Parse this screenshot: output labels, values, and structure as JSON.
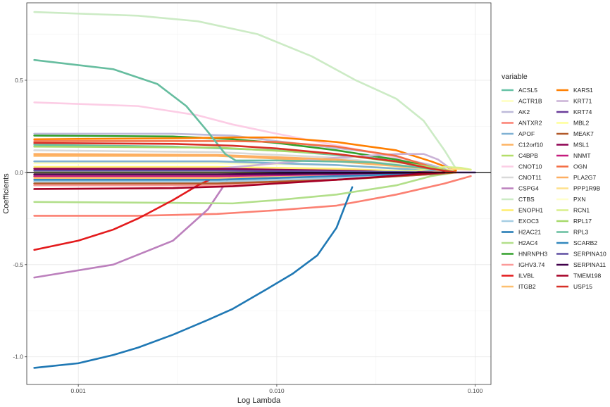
{
  "chart_data": {
    "type": "line",
    "xlabel": "Log Lambda",
    "ylabel": "Coefficients",
    "x_scale": "log",
    "xlim": [
      0.00055,
      0.12
    ],
    "ylim": [
      -1.15,
      0.92
    ],
    "x_ticks": [
      0.001,
      0.01,
      0.1
    ],
    "x_tick_labels": [
      "0.001",
      "0.010",
      "0.100"
    ],
    "y_ticks": [
      -1.0,
      -0.5,
      0.0,
      0.5
    ],
    "y_tick_labels": [
      "-1.0",
      "-0.5",
      "0.0",
      "0.5"
    ],
    "grid": true,
    "zero_line": true,
    "legend": {
      "title": "variable",
      "position": "right",
      "columns": 2
    },
    "series": [
      {
        "name": "ACSL5",
        "color": "#66c2a5",
        "points": [
          [
            0.0006,
            0.15
          ],
          [
            0.003,
            0.14
          ],
          [
            0.01,
            0.12
          ],
          [
            0.03,
            0.08
          ],
          [
            0.06,
            0.03
          ],
          [
            0.08,
            0.0
          ]
        ]
      },
      {
        "name": "ACTR1B",
        "color": "#ffffbf",
        "points": [
          [
            0.0006,
            0.05
          ],
          [
            0.005,
            0.05
          ],
          [
            0.02,
            0.04
          ],
          [
            0.06,
            0.015
          ],
          [
            0.08,
            0.0
          ]
        ]
      },
      {
        "name": "AK2",
        "color": "#bebada",
        "points": [
          [
            0.0006,
            0.21
          ],
          [
            0.003,
            0.21
          ],
          [
            0.006,
            0.2
          ],
          [
            0.01,
            0.17
          ],
          [
            0.03,
            0.11
          ],
          [
            0.06,
            0.04
          ],
          [
            0.08,
            0.0
          ]
        ]
      },
      {
        "name": "ANTXR2",
        "color": "#fb8072",
        "points": [
          [
            0.0006,
            -0.235
          ],
          [
            0.002,
            -0.235
          ],
          [
            0.005,
            -0.225
          ],
          [
            0.01,
            -0.205
          ],
          [
            0.02,
            -0.18
          ],
          [
            0.04,
            -0.12
          ],
          [
            0.07,
            -0.06
          ],
          [
            0.095,
            -0.02
          ]
        ]
      },
      {
        "name": "APOF",
        "color": "#80b1d3",
        "points": [
          [
            0.0006,
            0.06
          ],
          [
            0.005,
            0.06
          ],
          [
            0.02,
            0.04
          ],
          [
            0.06,
            0.01
          ],
          [
            0.08,
            0.0
          ]
        ]
      },
      {
        "name": "C12orf10",
        "color": "#fdb462",
        "points": [
          [
            0.0006,
            0.09
          ],
          [
            0.005,
            0.09
          ],
          [
            0.02,
            0.06
          ],
          [
            0.06,
            0.02
          ],
          [
            0.08,
            0.0
          ]
        ]
      },
      {
        "name": "C4BPB",
        "color": "#b3de69",
        "points": [
          [
            0.0006,
            -0.02
          ],
          [
            0.005,
            -0.02
          ],
          [
            0.02,
            -0.01
          ],
          [
            0.07,
            0.0
          ]
        ]
      },
      {
        "name": "CNOT10",
        "color": "#fccde5",
        "points": [
          [
            0.0006,
            0.38
          ],
          [
            0.002,
            0.36
          ],
          [
            0.004,
            0.31
          ],
          [
            0.006,
            0.26
          ],
          [
            0.01,
            0.21
          ],
          [
            0.03,
            0.11
          ],
          [
            0.06,
            0.03
          ],
          [
            0.08,
            0.0
          ]
        ]
      },
      {
        "name": "CNOT11",
        "color": "#d9d9d9",
        "points": [
          [
            0.0006,
            0.12
          ],
          [
            0.005,
            0.11
          ],
          [
            0.02,
            0.08
          ],
          [
            0.06,
            0.02
          ],
          [
            0.08,
            0.0
          ]
        ]
      },
      {
        "name": "CSPG4",
        "color": "#bc80bd",
        "points": [
          [
            0.0006,
            -0.57
          ],
          [
            0.0015,
            -0.5
          ],
          [
            0.003,
            -0.37
          ],
          [
            0.0045,
            -0.2
          ],
          [
            0.0055,
            -0.06
          ],
          [
            0.006,
            0.0
          ]
        ]
      },
      {
        "name": "CTBS",
        "color": "#ccebc5",
        "points": [
          [
            0.0006,
            0.87
          ],
          [
            0.002,
            0.85
          ],
          [
            0.004,
            0.82
          ],
          [
            0.008,
            0.75
          ],
          [
            0.015,
            0.63
          ],
          [
            0.025,
            0.5
          ],
          [
            0.04,
            0.4
          ],
          [
            0.055,
            0.28
          ],
          [
            0.07,
            0.12
          ],
          [
            0.08,
            0.02
          ]
        ]
      },
      {
        "name": "ENOPH1",
        "color": "#ffed6f",
        "points": [
          [
            0.0006,
            0.03
          ],
          [
            0.005,
            0.03
          ],
          [
            0.02,
            0.02
          ],
          [
            0.07,
            0.0
          ]
        ]
      },
      {
        "name": "EXOC3",
        "color": "#a6cee3",
        "points": [
          [
            0.0006,
            -0.05
          ],
          [
            0.005,
            -0.05
          ],
          [
            0.02,
            -0.03
          ],
          [
            0.06,
            -0.01
          ],
          [
            0.07,
            0.0
          ]
        ]
      },
      {
        "name": "H2AC21",
        "color": "#1f78b4",
        "points": [
          [
            0.0006,
            -1.06
          ],
          [
            0.001,
            -1.035
          ],
          [
            0.0015,
            -0.99
          ],
          [
            0.002,
            -0.95
          ],
          [
            0.003,
            -0.88
          ],
          [
            0.0045,
            -0.8
          ],
          [
            0.006,
            -0.74
          ],
          [
            0.009,
            -0.63
          ],
          [
            0.012,
            -0.55
          ],
          [
            0.016,
            -0.45
          ],
          [
            0.02,
            -0.3
          ],
          [
            0.024,
            -0.08
          ]
        ]
      },
      {
        "name": "H2AC4",
        "color": "#b2df8a",
        "points": [
          [
            0.0006,
            -0.16
          ],
          [
            0.003,
            -0.165
          ],
          [
            0.006,
            -0.168
          ],
          [
            0.01,
            -0.15
          ],
          [
            0.02,
            -0.12
          ],
          [
            0.04,
            -0.07
          ],
          [
            0.06,
            -0.02
          ],
          [
            0.08,
            0.0
          ]
        ]
      },
      {
        "name": "HNRNPH3",
        "color": "#33a02c",
        "points": [
          [
            0.0006,
            0.2
          ],
          [
            0.003,
            0.195
          ],
          [
            0.006,
            0.18
          ],
          [
            0.01,
            0.16
          ],
          [
            0.02,
            0.12
          ],
          [
            0.04,
            0.07
          ],
          [
            0.06,
            0.03
          ],
          [
            0.08,
            0.0
          ]
        ]
      },
      {
        "name": "IGHV3.74",
        "color": "#fb9a99",
        "points": [
          [
            0.0006,
            -0.07
          ],
          [
            0.005,
            -0.07
          ],
          [
            0.02,
            -0.04
          ],
          [
            0.06,
            -0.01
          ],
          [
            0.08,
            0.0
          ]
        ]
      },
      {
        "name": "ILVBL",
        "color": "#e31a1c",
        "points": [
          [
            0.0006,
            -0.42
          ],
          [
            0.001,
            -0.37
          ],
          [
            0.0015,
            -0.31
          ],
          [
            0.002,
            -0.25
          ],
          [
            0.003,
            -0.15
          ],
          [
            0.004,
            -0.07
          ],
          [
            0.0048,
            -0.03
          ]
        ]
      },
      {
        "name": "ITGB2",
        "color": "#fdbf6f",
        "points": [
          [
            0.0006,
            -0.03
          ],
          [
            0.005,
            -0.03
          ],
          [
            0.02,
            -0.02
          ],
          [
            0.06,
            0.0
          ]
        ]
      },
      {
        "name": "KARS1",
        "color": "#ff7f00",
        "points": [
          [
            0.0006,
            0.18
          ],
          [
            0.003,
            0.185
          ],
          [
            0.006,
            0.19
          ],
          [
            0.01,
            0.19
          ],
          [
            0.02,
            0.165
          ],
          [
            0.04,
            0.12
          ],
          [
            0.06,
            0.06
          ],
          [
            0.08,
            0.01
          ]
        ]
      },
      {
        "name": "KRT71",
        "color": "#cab2d6",
        "points": [
          [
            0.0006,
            0.0
          ],
          [
            0.005,
            0.02
          ],
          [
            0.01,
            0.05
          ],
          [
            0.02,
            0.08
          ],
          [
            0.04,
            0.1
          ],
          [
            0.055,
            0.1
          ],
          [
            0.065,
            0.07
          ],
          [
            0.075,
            0.02
          ]
        ]
      },
      {
        "name": "KRT74",
        "color": "#6a3d9a",
        "points": [
          [
            0.0006,
            0.0
          ],
          [
            0.02,
            0.0
          ],
          [
            0.1,
            0.0
          ]
        ]
      },
      {
        "name": "MBL2",
        "color": "#ffff99",
        "points": [
          [
            0.0006,
            0.01
          ],
          [
            0.005,
            0.01
          ],
          [
            0.02,
            0.005
          ],
          [
            0.06,
            0.0
          ]
        ]
      },
      {
        "name": "MEAK7",
        "color": "#b15928",
        "points": [
          [
            0.0006,
            -0.06
          ],
          [
            0.005,
            -0.06
          ],
          [
            0.02,
            -0.04
          ],
          [
            0.06,
            -0.01
          ],
          [
            0.08,
            0.0
          ]
        ]
      },
      {
        "name": "MSL1",
        "color": "#8e0152",
        "points": [
          [
            0.0006,
            0.02
          ],
          [
            0.005,
            0.02
          ],
          [
            0.02,
            0.01
          ],
          [
            0.07,
            0.0
          ]
        ]
      },
      {
        "name": "NNMT",
        "color": "#c51b7d",
        "points": [
          [
            0.0006,
            -0.02
          ],
          [
            0.005,
            -0.02
          ],
          [
            0.02,
            -0.01
          ],
          [
            0.07,
            0.0
          ]
        ]
      },
      {
        "name": "OGN",
        "color": "#f46d43",
        "points": [
          [
            0.0006,
            0.17
          ],
          [
            0.003,
            0.17
          ],
          [
            0.006,
            0.17
          ],
          [
            0.01,
            0.165
          ],
          [
            0.02,
            0.14
          ],
          [
            0.04,
            0.09
          ],
          [
            0.06,
            0.03
          ],
          [
            0.08,
            0.0
          ]
        ]
      },
      {
        "name": "PLA2G7",
        "color": "#fdae61",
        "points": [
          [
            0.0006,
            0.1
          ],
          [
            0.005,
            0.095
          ],
          [
            0.02,
            0.07
          ],
          [
            0.06,
            0.02
          ],
          [
            0.08,
            0.0
          ]
        ]
      },
      {
        "name": "PPP1R9B",
        "color": "#fee08b",
        "points": [
          [
            0.0006,
            0.0
          ],
          [
            0.02,
            0.0
          ],
          [
            0.06,
            0.0
          ],
          [
            0.08,
            0.02
          ],
          [
            0.095,
            0.015
          ]
        ]
      },
      {
        "name": "PXN",
        "color": "#ffffcc",
        "points": [
          [
            0.0006,
            -0.01
          ],
          [
            0.005,
            -0.01
          ],
          [
            0.02,
            -0.005
          ],
          [
            0.07,
            0.0
          ]
        ]
      },
      {
        "name": "RCN1",
        "color": "#d9ef8b",
        "points": [
          [
            0.0006,
            0.0
          ],
          [
            0.02,
            0.0
          ],
          [
            0.05,
            0.01
          ],
          [
            0.07,
            0.03
          ],
          [
            0.085,
            0.025
          ],
          [
            0.095,
            0.015
          ]
        ]
      },
      {
        "name": "RPL17",
        "color": "#a6d96a",
        "points": [
          [
            0.0006,
            0.14
          ],
          [
            0.005,
            0.135
          ],
          [
            0.02,
            0.1
          ],
          [
            0.06,
            0.03
          ],
          [
            0.08,
            0.0
          ]
        ]
      },
      {
        "name": "RPL3",
        "color": "#66bd9f",
        "points": [
          [
            0.0006,
            0.61
          ],
          [
            0.0015,
            0.56
          ],
          [
            0.0025,
            0.48
          ],
          [
            0.0035,
            0.36
          ],
          [
            0.0045,
            0.22
          ],
          [
            0.0055,
            0.1
          ],
          [
            0.0062,
            0.065
          ],
          [
            0.01,
            0.065
          ],
          [
            0.03,
            0.055
          ],
          [
            0.06,
            0.02
          ],
          [
            0.08,
            0.0
          ]
        ]
      },
      {
        "name": "SCARB2",
        "color": "#3288bd",
        "points": [
          [
            0.0006,
            -0.04
          ],
          [
            0.005,
            -0.04
          ],
          [
            0.02,
            -0.02
          ],
          [
            0.06,
            -0.005
          ],
          [
            0.07,
            0.0
          ]
        ]
      },
      {
        "name": "SERPINA10",
        "color": "#5e4fa2",
        "points": [
          [
            0.0006,
            0.01
          ],
          [
            0.005,
            0.01
          ],
          [
            0.02,
            0.005
          ],
          [
            0.07,
            0.0
          ]
        ]
      },
      {
        "name": "SERPINA11",
        "color": "#40004b",
        "points": [
          [
            0.0006,
            -0.01
          ],
          [
            0.005,
            -0.01
          ],
          [
            0.02,
            -0.005
          ],
          [
            0.07,
            0.0
          ]
        ]
      },
      {
        "name": "TMEM198",
        "color": "#a50026",
        "points": [
          [
            0.0006,
            -0.09
          ],
          [
            0.003,
            -0.085
          ],
          [
            0.006,
            -0.075
          ],
          [
            0.01,
            -0.06
          ],
          [
            0.02,
            -0.04
          ],
          [
            0.05,
            -0.01
          ],
          [
            0.07,
            0.0
          ]
        ]
      },
      {
        "name": "USP15",
        "color": "#d73027",
        "points": [
          [
            0.0006,
            0.16
          ],
          [
            0.003,
            0.155
          ],
          [
            0.006,
            0.145
          ],
          [
            0.01,
            0.13
          ],
          [
            0.02,
            0.1
          ],
          [
            0.04,
            0.06
          ],
          [
            0.06,
            0.02
          ],
          [
            0.08,
            0.0
          ]
        ]
      }
    ]
  }
}
